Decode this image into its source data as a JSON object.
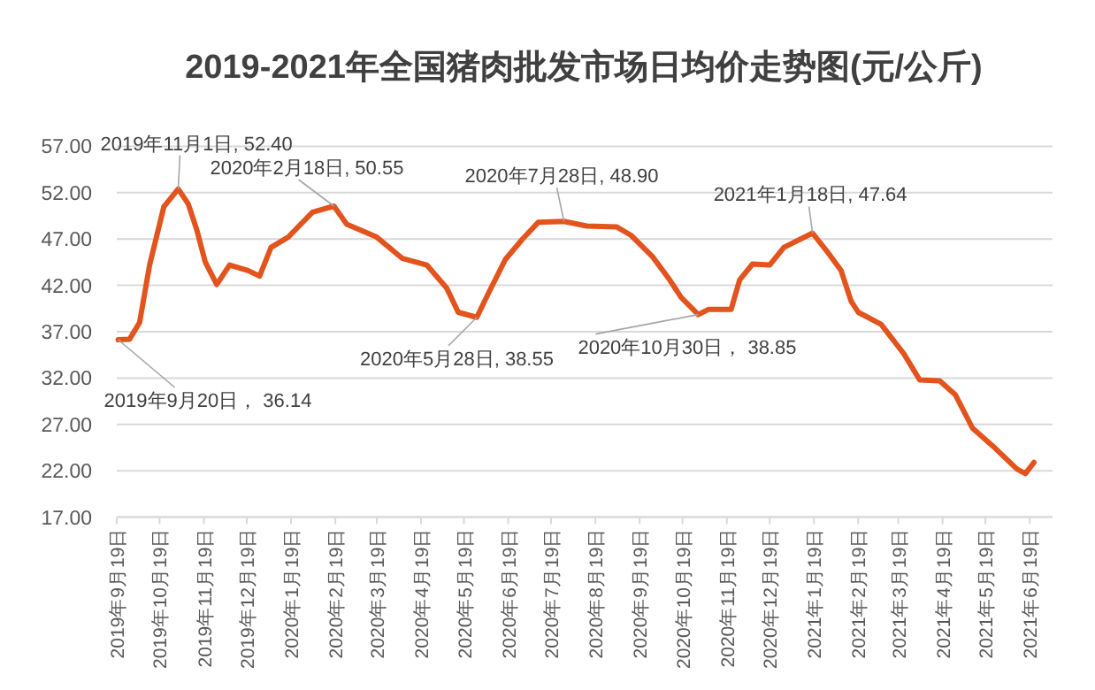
{
  "chart_data": {
    "type": "line",
    "title": "2019-2021年全国猪肉批发市场日均价走势图(元/公斤)",
    "x": [
      "2019-09-20",
      "2019-09-28",
      "2019-10-05",
      "2019-10-12",
      "2019-10-22",
      "2019-11-01",
      "2019-11-08",
      "2019-11-14",
      "2019-11-20",
      "2019-11-28",
      "2019-12-07",
      "2019-12-20",
      "2019-12-28",
      "2020-01-05",
      "2020-01-17",
      "2020-02-03",
      "2020-02-18",
      "2020-02-27",
      "2020-03-19",
      "2020-04-06",
      "2020-04-23",
      "2020-05-07",
      "2020-05-15",
      "2020-05-28",
      "2020-06-05",
      "2020-06-17",
      "2020-06-29",
      "2020-07-10",
      "2020-07-28",
      "2020-08-13",
      "2020-09-03",
      "2020-09-13",
      "2020-09-28",
      "2020-10-10",
      "2020-10-18",
      "2020-10-30",
      "2020-11-06",
      "2020-11-22",
      "2020-11-28",
      "2020-12-07",
      "2020-12-19",
      "2020-12-29",
      "2021-01-18",
      "2021-01-29",
      "2021-02-07",
      "2021-02-14",
      "2021-02-19",
      "2021-03-07",
      "2021-03-23",
      "2021-04-03",
      "2021-04-17",
      "2021-04-28",
      "2021-05-10",
      "2021-05-24",
      "2021-06-10",
      "2021-06-16",
      "2021-06-22"
    ],
    "series": [
      {
        "color": "#e2531d",
        "values": [
          36.14,
          36.2,
          38.0,
          44.2,
          50.5,
          52.4,
          50.8,
          48.0,
          44.5,
          42.1,
          44.2,
          43.6,
          43.0,
          46.1,
          47.2,
          49.9,
          50.55,
          48.6,
          47.2,
          44.9,
          44.2,
          41.7,
          39.1,
          38.55,
          41.1,
          44.8,
          47.0,
          48.8,
          48.9,
          48.4,
          48.3,
          47.4,
          45.1,
          42.6,
          40.7,
          38.85,
          39.4,
          39.4,
          42.6,
          44.3,
          44.2,
          46.1,
          47.64,
          45.5,
          43.6,
          40.3,
          39.1,
          37.8,
          34.6,
          31.8,
          31.7,
          30.2,
          26.6,
          24.7,
          22.2,
          21.7,
          22.9
        ]
      }
    ],
    "xlim": [
      "2019-09-19",
      "2021-07-05"
    ],
    "xticks": [
      {
        "value": "2019-09-19",
        "label": "2019年9月19日"
      },
      {
        "value": "2019-10-19",
        "label": "2019年10月19日"
      },
      {
        "value": "2019-11-19",
        "label": "2019年11月19日"
      },
      {
        "value": "2019-12-19",
        "label": "2019年12月19日"
      },
      {
        "value": "2020-01-19",
        "label": "2020年1月19日"
      },
      {
        "value": "2020-02-19",
        "label": "2020年2月19日"
      },
      {
        "value": "2020-03-19",
        "label": "2020年3月19日"
      },
      {
        "value": "2020-04-19",
        "label": "2020年4月19日"
      },
      {
        "value": "2020-05-19",
        "label": "2020年5月19日"
      },
      {
        "value": "2020-06-19",
        "label": "2020年6月19日"
      },
      {
        "value": "2020-07-19",
        "label": "2020年7月19日"
      },
      {
        "value": "2020-08-19",
        "label": "2020年8月19日"
      },
      {
        "value": "2020-09-19",
        "label": "2020年9月19日"
      },
      {
        "value": "2020-10-19",
        "label": "2020年10月19日"
      },
      {
        "value": "2020-11-19",
        "label": "2020年11月19日"
      },
      {
        "value": "2020-12-19",
        "label": "2020年12月19日"
      },
      {
        "value": "2021-01-19",
        "label": "2021年1月19日"
      },
      {
        "value": "2021-02-19",
        "label": "2021年2月19日"
      },
      {
        "value": "2021-03-19",
        "label": "2021年3月19日"
      },
      {
        "value": "2021-04-19",
        "label": "2021年4月19日"
      },
      {
        "value": "2021-05-19",
        "label": "2021年5月19日"
      },
      {
        "value": "2021-06-19",
        "label": "2021年6月19日"
      }
    ],
    "ylim": [
      17,
      57
    ],
    "yticks": [
      {
        "value": 17,
        "label": "17.00"
      },
      {
        "value": 22,
        "label": "22.00"
      },
      {
        "value": 27,
        "label": "27.00"
      },
      {
        "value": 32,
        "label": "32.00"
      },
      {
        "value": 37,
        "label": "37.00"
      },
      {
        "value": 42,
        "label": "42.00"
      },
      {
        "value": 47,
        "label": "47.00"
      },
      {
        "value": 52,
        "label": "52.00"
      },
      {
        "value": 57,
        "label": "57.00"
      }
    ],
    "grid": "y",
    "marker": "none",
    "line_style": "solid",
    "annotations": [
      {
        "text": "2019年9月20日， 36.14",
        "x": "2019-09-20",
        "y": 36.14
      },
      {
        "text": "2019年11月1日, 52.40",
        "x": "2019-11-01",
        "y": 52.4
      },
      {
        "text": "2020年2月18日, 50.55",
        "x": "2020-02-18",
        "y": 50.55
      },
      {
        "text": "2020年5月28日, 38.55",
        "x": "2020-05-28",
        "y": 38.55
      },
      {
        "text": "2020年7月28日, 48.90",
        "x": "2020-07-28",
        "y": 48.9
      },
      {
        "text": "2020年10月30日， 38.85",
        "x": "2020-10-30",
        "y": 38.85
      },
      {
        "text": "2021年1月18日, 47.64",
        "x": "2021-01-18",
        "y": 47.64
      }
    ]
  }
}
